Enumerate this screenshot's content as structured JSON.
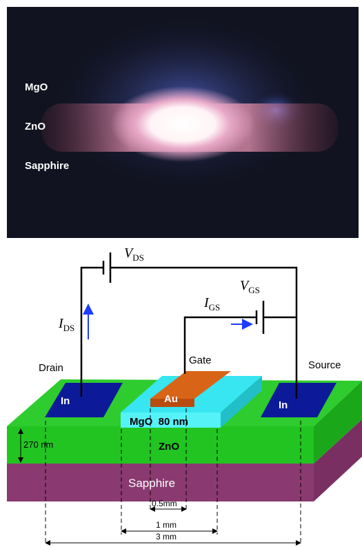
{
  "photo": {
    "labels": [
      "MgO",
      "ZnO",
      "Sapphire"
    ]
  },
  "circuit": {
    "v_ds": {
      "symbol": "V",
      "sub": "DS"
    },
    "i_ds": {
      "symbol": "I",
      "sub": "DS"
    },
    "v_gs": {
      "symbol": "V",
      "sub": "GS"
    },
    "i_gs": {
      "symbol": "I",
      "sub": "GS"
    },
    "terminals": [
      "Drain",
      "Gate",
      "Source"
    ]
  },
  "device": {
    "drain_contact": "In",
    "gate_contact": "Au",
    "source_contact": "In",
    "dielectric": "MgO  80 nm",
    "channel": "ZnO",
    "channel_thickness": "270 nm",
    "substrate": "Sapphire"
  },
  "dimensions": [
    "0.5mm",
    "1 mm",
    "3 mm"
  ]
}
